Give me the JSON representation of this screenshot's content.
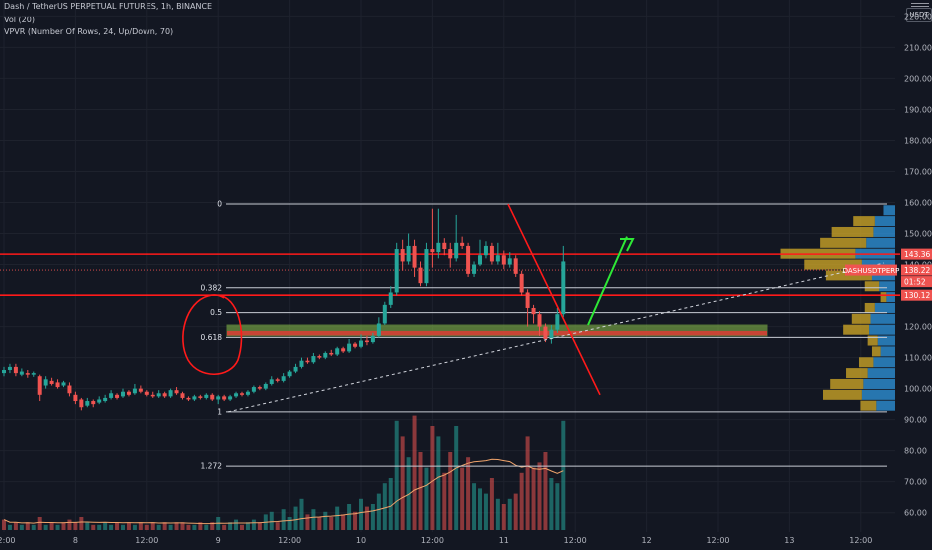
{
  "legend": {
    "symbol": "Dash / TetherUS PERPETUAL FUTURES, 1h, BINANCE",
    "volume": "Vol (20)",
    "vpvr": "VPVR (Number Of Rows, 24, Up/Down, 70)"
  },
  "currency_button": "USDT",
  "colors": {
    "background": "#131722",
    "up": "#26a69a",
    "down": "#ef5350",
    "level_line": "#ff1a1a",
    "fib_line": "#c8ccd4",
    "zone_fill": "#8bc34a",
    "arrow": "#2ee836",
    "axis_text": "#b2b5be",
    "vpvr_up": "#2d8fd3",
    "vpvr_down": "#c9a227"
  },
  "chart_data": {
    "type": "candlestick",
    "title": "Dash / TetherUS PERPETUAL FUTURES, 1h, BINANCE",
    "y_axis": {
      "ticks": [
        "60.00",
        "70.00",
        "80.00",
        "90.00",
        "100.00",
        "110.00",
        "120.00",
        "130.00",
        "140.00",
        "150.00",
        "160.00",
        "170.00",
        "180.00",
        "190.00",
        "200.00",
        "210.00",
        "220.00"
      ],
      "range": [
        58,
        220
      ]
    },
    "x_axis": {
      "ticks": [
        {
          "label": "12:00",
          "index": 0
        },
        {
          "label": "8",
          "index": 12
        },
        {
          "label": "12:00",
          "index": 24
        },
        {
          "label": "9",
          "index": 36
        },
        {
          "label": "12:00",
          "index": 48
        },
        {
          "label": "10",
          "index": 60
        },
        {
          "label": "12:00",
          "index": 72
        },
        {
          "label": "11",
          "index": 84
        },
        {
          "label": "12:00",
          "index": 96
        },
        {
          "label": "12",
          "index": 108
        },
        {
          "label": "12:00",
          "index": 120
        },
        {
          "label": "13",
          "index": 132
        },
        {
          "label": "12:00",
          "index": 144
        }
      ],
      "candle_count_visible": 95
    },
    "price_labels": [
      {
        "text": "143.36",
        "value": 143.36,
        "color": "#ef5350"
      },
      {
        "text": "138.22",
        "value": 138.22,
        "color": "#ef5350"
      },
      {
        "text": "01:52",
        "value": 134.5,
        "color": "#ef5350"
      },
      {
        "text": "130.12",
        "value": 130.12,
        "color": "#ef5350"
      },
      {
        "text": "DASHUSDTPERP",
        "value": 138.22,
        "color": "#ef5350"
      }
    ],
    "fib_levels": [
      {
        "label": "0",
        "value": 159.5
      },
      {
        "label": "0.382",
        "value": 132.5
      },
      {
        "label": "0.5",
        "value": 124.5
      },
      {
        "label": "0.618",
        "value": 116.5
      },
      {
        "label": "1",
        "value": 92.5
      },
      {
        "label": "1.272",
        "value": 75.0
      }
    ],
    "horizontal_levels": [
      143.36,
      130.12
    ],
    "zone": {
      "from": 117.0,
      "to": 120.5
    },
    "candles": [
      [
        105,
        106,
        104,
        107
      ],
      [
        106,
        107,
        105,
        108
      ],
      [
        107,
        105,
        104,
        108
      ],
      [
        104.5,
        105.5,
        104,
        106.5
      ],
      [
        105,
        104.5,
        103.5,
        106
      ],
      [
        104.5,
        105,
        103.8,
        105.5
      ],
      [
        104,
        98,
        96,
        104.5
      ],
      [
        101,
        103,
        100,
        104
      ],
      [
        102.5,
        101.5,
        101,
        103.5
      ],
      [
        102,
        100.5,
        100,
        103
      ],
      [
        101,
        102,
        100.5,
        102.5
      ],
      [
        101,
        98.5,
        97.5,
        102
      ],
      [
        98,
        96,
        95,
        99
      ],
      [
        96.5,
        94,
        93,
        97
      ],
      [
        94.5,
        96,
        94,
        97
      ],
      [
        96,
        95,
        94,
        96.5
      ],
      [
        95.5,
        96.5,
        95,
        97.5
      ],
      [
        96,
        97,
        95.5,
        98
      ],
      [
        97,
        98.5,
        96.5,
        99.5
      ],
      [
        98,
        97,
        96.5,
        98.5
      ],
      [
        97.5,
        99,
        97,
        100
      ],
      [
        99,
        98,
        97.5,
        99.5
      ],
      [
        98.5,
        100,
        98,
        101.5
      ],
      [
        100,
        99,
        98.5,
        101
      ],
      [
        99,
        98,
        97.5,
        99.5
      ],
      [
        98,
        97.5,
        97,
        99
      ],
      [
        97.5,
        98.5,
        97,
        99.5
      ],
      [
        98.5,
        97.5,
        97,
        99
      ],
      [
        97.5,
        99.5,
        97,
        100
      ],
      [
        99.5,
        98.5,
        98,
        100.5
      ],
      [
        98.5,
        97,
        96.5,
        99
      ],
      [
        97,
        96.5,
        96,
        97.5
      ],
      [
        96.5,
        97.5,
        96,
        98
      ],
      [
        97.5,
        97,
        96.5,
        98
      ],
      [
        97,
        98,
        96.5,
        98.5
      ],
      [
        98,
        96.5,
        96,
        98.5
      ],
      [
        96.5,
        97.5,
        95,
        98
      ],
      [
        97.5,
        96.5,
        96,
        98
      ],
      [
        96.5,
        97.5,
        96,
        98
      ],
      [
        97.5,
        98.5,
        97,
        99
      ],
      [
        98.5,
        98,
        97.5,
        99
      ],
      [
        98,
        99,
        97.5,
        99.5
      ],
      [
        99,
        100.5,
        98.5,
        101
      ],
      [
        100.5,
        100,
        99.5,
        101
      ],
      [
        100,
        101.5,
        99.5,
        102
      ],
      [
        101.5,
        103,
        101,
        104
      ],
      [
        103,
        102.5,
        102,
        103.5
      ],
      [
        102.5,
        104,
        102,
        105
      ],
      [
        104,
        105.5,
        103.5,
        106
      ],
      [
        105.5,
        107,
        105,
        108
      ],
      [
        107,
        109,
        106.5,
        110
      ],
      [
        109,
        108.5,
        108,
        110
      ],
      [
        108.5,
        110.5,
        108,
        111.5
      ],
      [
        110.5,
        110,
        109.5,
        111
      ],
      [
        110,
        111.5,
        109.5,
        112
      ],
      [
        111.5,
        111,
        110.5,
        112.5
      ],
      [
        111,
        113,
        110.5,
        113.5
      ],
      [
        113,
        112,
        111.5,
        113.5
      ],
      [
        112,
        114.5,
        111.5,
        116
      ],
      [
        114.5,
        113.5,
        113,
        115
      ],
      [
        113.5,
        115.5,
        113,
        117.5
      ],
      [
        115.5,
        115,
        114,
        117
      ],
      [
        115,
        117,
        114.5,
        118
      ],
      [
        117,
        121,
        116.5,
        123
      ],
      [
        121,
        127,
        120.5,
        128
      ],
      [
        127,
        131,
        126,
        133
      ],
      [
        131,
        145,
        130,
        147
      ],
      [
        145,
        141,
        138,
        148
      ],
      [
        141,
        146,
        140,
        150
      ],
      [
        146,
        139,
        136,
        148
      ],
      [
        139,
        134,
        133,
        141
      ],
      [
        134,
        145,
        133,
        147
      ],
      [
        145,
        144,
        139,
        158
      ],
      [
        144,
        147,
        142,
        158
      ],
      [
        147,
        145,
        143,
        148.5
      ],
      [
        145,
        142,
        139,
        147
      ],
      [
        142,
        147,
        141,
        156
      ],
      [
        147,
        146,
        145,
        149
      ],
      [
        146,
        137,
        136,
        147
      ],
      [
        137,
        140,
        136,
        141
      ],
      [
        140,
        143,
        139.5,
        148
      ],
      [
        143,
        146,
        142,
        147.5
      ],
      [
        146,
        141,
        140,
        147
      ],
      [
        141,
        143,
        140,
        147
      ],
      [
        143,
        140,
        138.5,
        144.5
      ],
      [
        140,
        142,
        139,
        144
      ],
      [
        142,
        137,
        136,
        143
      ],
      [
        137,
        131,
        130,
        138
      ],
      [
        131,
        126,
        120,
        132
      ],
      [
        126,
        124,
        121,
        127
      ],
      [
        124,
        120,
        117,
        125
      ],
      [
        120,
        116,
        115,
        121
      ],
      [
        116,
        119,
        114.5,
        120.5
      ],
      [
        119,
        124,
        118,
        126
      ],
      [
        124,
        141,
        123,
        146
      ]
    ],
    "volumes": [
      [
        4,
        0
      ],
      [
        2,
        1
      ],
      [
        3,
        0
      ],
      [
        2,
        1
      ],
      [
        3,
        0
      ],
      [
        2,
        1
      ],
      [
        5,
        0
      ],
      [
        2,
        1
      ],
      [
        3,
        0
      ],
      [
        2,
        1
      ],
      [
        3,
        0
      ],
      [
        4,
        0
      ],
      [
        3,
        0
      ],
      [
        5,
        0
      ],
      [
        3,
        1
      ],
      [
        2,
        0
      ],
      [
        2,
        1
      ],
      [
        3,
        1
      ],
      [
        2,
        1
      ],
      [
        3,
        0
      ],
      [
        2,
        1
      ],
      [
        3,
        0
      ],
      [
        2,
        1
      ],
      [
        3,
        0
      ],
      [
        2,
        0
      ],
      [
        3,
        0
      ],
      [
        2,
        1
      ],
      [
        3,
        0
      ],
      [
        2,
        1
      ],
      [
        3,
        0
      ],
      [
        3,
        0
      ],
      [
        2,
        0
      ],
      [
        2,
        1
      ],
      [
        3,
        0
      ],
      [
        2,
        1
      ],
      [
        3,
        0
      ],
      [
        5,
        1
      ],
      [
        2,
        0
      ],
      [
        3,
        1
      ],
      [
        4,
        1
      ],
      [
        2,
        0
      ],
      [
        3,
        1
      ],
      [
        4,
        1
      ],
      [
        3,
        0
      ],
      [
        6,
        1
      ],
      [
        7,
        1
      ],
      [
        3,
        0
      ],
      [
        8,
        1
      ],
      [
        5,
        1
      ],
      [
        9,
        1
      ],
      [
        12,
        1
      ],
      [
        6,
        0
      ],
      [
        8,
        1
      ],
      [
        5,
        0
      ],
      [
        7,
        1
      ],
      [
        5,
        0
      ],
      [
        9,
        1
      ],
      [
        6,
        0
      ],
      [
        10,
        1
      ],
      [
        7,
        0
      ],
      [
        12,
        1
      ],
      [
        9,
        0
      ],
      [
        10,
        1
      ],
      [
        14,
        1
      ],
      [
        18,
        1
      ],
      [
        20,
        1
      ],
      [
        42,
        1
      ],
      [
        36,
        0
      ],
      [
        28,
        1
      ],
      [
        44,
        0
      ],
      [
        30,
        0
      ],
      [
        24,
        1
      ],
      [
        40,
        0
      ],
      [
        36,
        1
      ],
      [
        22,
        0
      ],
      [
        30,
        0
      ],
      [
        40,
        1
      ],
      [
        24,
        0
      ],
      [
        28,
        0
      ],
      [
        18,
        1
      ],
      [
        16,
        1
      ],
      [
        14,
        1
      ],
      [
        20,
        0
      ],
      [
        12,
        1
      ],
      [
        10,
        0
      ],
      [
        12,
        1
      ],
      [
        14,
        0
      ],
      [
        22,
        0
      ],
      [
        36,
        0
      ],
      [
        24,
        0
      ],
      [
        26,
        0
      ],
      [
        30,
        0
      ],
      [
        20,
        1
      ],
      [
        18,
        1
      ],
      [
        42,
        1
      ]
    ],
    "vpvr": [
      {
        "price": 157.5,
        "up": 16,
        "down": 0
      },
      {
        "price": 154.0,
        "up": 28,
        "down": 30
      },
      {
        "price": 150.5,
        "up": 30,
        "down": 58
      },
      {
        "price": 147.0,
        "up": 40,
        "down": 64
      },
      {
        "price": 143.5,
        "up": 55,
        "down": 104
      },
      {
        "price": 140.0,
        "up": 46,
        "down": 80
      },
      {
        "price": 136.5,
        "up": 32,
        "down": 64
      },
      {
        "price": 133.0,
        "up": 22,
        "down": 20
      },
      {
        "price": 129.5,
        "up": 12,
        "down": 8
      },
      {
        "price": 126.0,
        "up": 28,
        "down": 14
      },
      {
        "price": 122.5,
        "up": 34,
        "down": 26
      },
      {
        "price": 119.0,
        "up": 36,
        "down": 36
      },
      {
        "price": 115.5,
        "up": 24,
        "down": 14
      },
      {
        "price": 112.0,
        "up": 20,
        "down": 12
      },
      {
        "price": 108.5,
        "up": 30,
        "down": 20
      },
      {
        "price": 105.0,
        "up": 38,
        "down": 30
      },
      {
        "price": 101.5,
        "up": 44,
        "down": 46
      },
      {
        "price": 98.0,
        "up": 46,
        "down": 54
      },
      {
        "price": 94.5,
        "up": 26,
        "down": 22
      }
    ]
  }
}
